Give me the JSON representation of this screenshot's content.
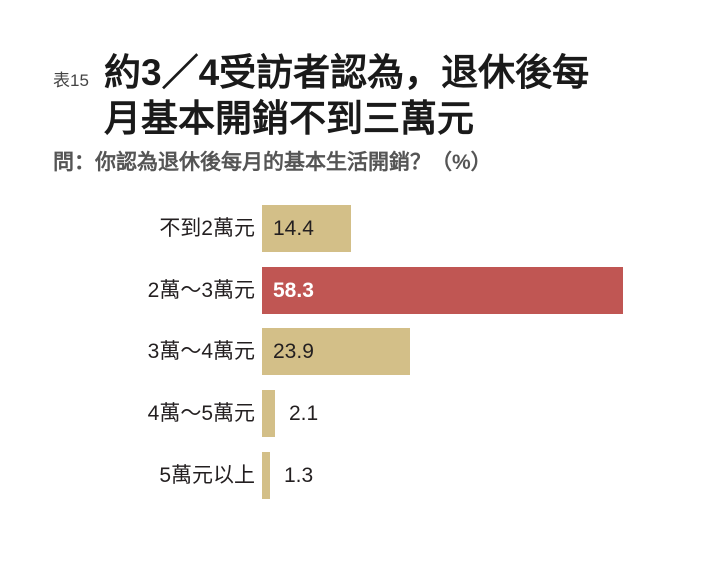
{
  "header": {
    "tag": "表15",
    "title_line1": "約3／4受訪者認為，退休後每",
    "title_line2": "月基本開銷不到三萬元",
    "subtitle": "問：你認為退休後每月的基本生活開銷？（%）"
  },
  "colors": {
    "default_bar": "#d3bf88",
    "highlight_bar": "#c05653",
    "highlight_text": "#ffffff",
    "default_text": "#231f20"
  },
  "chart_data": {
    "type": "bar",
    "orientation": "horizontal",
    "title": "約3／4受訪者認為，退休後每月基本開銷不到三萬元",
    "subtitle": "問：你認為退休後每月的基本生活開銷？（%）",
    "xlabel": "",
    "ylabel": "",
    "unit": "%",
    "categories": [
      "不到2萬元",
      "2萬～3萬元",
      "3萬～4萬元",
      "4萬～5萬元",
      "5萬元以上"
    ],
    "values": [
      14.4,
      58.3,
      23.9,
      2.1,
      1.3
    ],
    "value_labels": [
      "14.4",
      "58.3",
      "23.9",
      "2.1",
      "1.3"
    ],
    "highlight_index": 1,
    "grid": false,
    "legend": null
  }
}
